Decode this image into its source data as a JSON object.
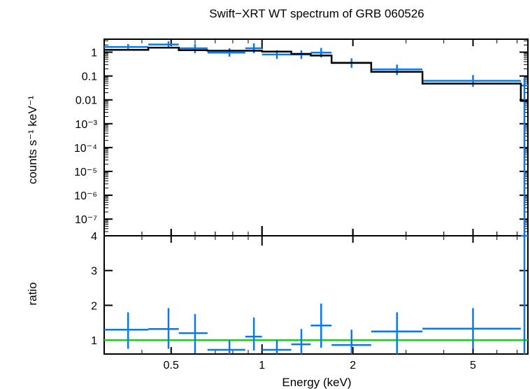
{
  "chart_data": [
    {
      "type": "scatter",
      "title": "Swift−XRT WT spectrum of GRB 060526",
      "xlabel": "",
      "ylabel": "counts s⁻¹ keV⁻¹",
      "x_scale": "log",
      "y_scale": "log",
      "xlim": [
        0.3,
        7.6
      ],
      "ylim": [
        2e-08,
        3.5
      ],
      "grid": false,
      "y_ticks": [
        {
          "value": 1,
          "label": "1"
        },
        {
          "value": 0.1,
          "label": "0.1"
        },
        {
          "value": 0.01,
          "label": "0.01"
        },
        {
          "value": 0.001,
          "label": "10⁻³"
        },
        {
          "value": 0.0001,
          "label": "10⁻⁴"
        },
        {
          "value": 1e-05,
          "label": "10⁻⁵"
        },
        {
          "value": 1e-06,
          "label": "10⁻⁶"
        },
        {
          "value": 1e-07,
          "label": "10⁻⁷"
        }
      ],
      "series": [
        {
          "type": "errorbar",
          "color": "#0a78e6",
          "points": [
            {
              "xlo": 0.3,
              "xhi": 0.42,
              "x": 0.36,
              "y": 1.65,
              "ylo": 1.25,
              "yhi": 2.2
            },
            {
              "xlo": 0.42,
              "xhi": 0.53,
              "x": 0.49,
              "y": 2.1,
              "ylo": 1.55,
              "yhi": 2.85
            },
            {
              "xlo": 0.53,
              "xhi": 0.66,
              "x": 0.6,
              "y": 1.45,
              "ylo": 0.9,
              "yhi": 2.25
            },
            {
              "xlo": 0.66,
              "xhi": 0.88,
              "x": 0.78,
              "y": 0.95,
              "ylo": 0.65,
              "yhi": 1.45
            },
            {
              "xlo": 0.88,
              "xhi": 1.0,
              "x": 0.94,
              "y": 1.45,
              "ylo": 0.9,
              "yhi": 2.35
            },
            {
              "xlo": 1.0,
              "xhi": 1.25,
              "x": 1.12,
              "y": 0.8,
              "ylo": 0.52,
              "yhi": 1.2
            },
            {
              "xlo": 1.25,
              "xhi": 1.45,
              "x": 1.35,
              "y": 0.8,
              "ylo": 0.52,
              "yhi": 1.2
            },
            {
              "xlo": 1.45,
              "xhi": 1.7,
              "x": 1.57,
              "y": 0.95,
              "ylo": 0.6,
              "yhi": 1.5
            },
            {
              "xlo": 1.7,
              "xhi": 2.3,
              "x": 1.98,
              "y": 0.35,
              "ylo": 0.22,
              "yhi": 0.55
            },
            {
              "xlo": 2.3,
              "xhi": 3.4,
              "x": 2.8,
              "y": 0.19,
              "ylo": 0.11,
              "yhi": 0.3
            },
            {
              "xlo": 3.4,
              "xhi": 7.2,
              "x": 5.0,
              "y": 0.063,
              "ylo": 0.035,
              "yhi": 0.11
            },
            {
              "xlo": 7.2,
              "xhi": 7.6,
              "x": 7.4,
              "y": 0.04,
              "ylo": 2e-08,
              "yhi": 0.08
            }
          ]
        },
        {
          "type": "step",
          "color": "#000000",
          "edges": [
            0.3,
            0.42,
            0.53,
            0.66,
            0.88,
            1.0,
            1.25,
            1.45,
            1.7,
            2.3,
            3.4,
            7.2,
            7.6
          ],
          "values": [
            1.25,
            1.55,
            1.2,
            1.15,
            1.15,
            1.05,
            0.85,
            0.72,
            0.36,
            0.15,
            0.048,
            0.009
          ]
        }
      ]
    },
    {
      "type": "scatter",
      "title": "",
      "xlabel": "Energy (keV)",
      "ylabel": "ratio",
      "x_scale": "log",
      "y_scale": "linear",
      "xlim": [
        0.3,
        7.6
      ],
      "ylim": [
        0.6,
        4.0
      ],
      "grid": false,
      "x_ticks": [
        {
          "value": 0.5,
          "label": "0.5"
        },
        {
          "value": 1,
          "label": "1"
        },
        {
          "value": 2,
          "label": "2"
        },
        {
          "value": 5,
          "label": "5"
        }
      ],
      "y_ticks": [
        {
          "value": 1,
          "label": "1"
        },
        {
          "value": 2,
          "label": "2"
        },
        {
          "value": 3,
          "label": "3"
        },
        {
          "value": 4,
          "label": "4"
        }
      ],
      "reference_line": {
        "y": 1,
        "color": "#00e000"
      },
      "series": [
        {
          "type": "errorbar",
          "color": "#0a78e6",
          "points": [
            {
              "xlo": 0.3,
              "xhi": 0.42,
              "x": 0.36,
              "y": 1.3,
              "ylo": 0.75,
              "yhi": 1.8
            },
            {
              "xlo": 0.42,
              "xhi": 0.53,
              "x": 0.49,
              "y": 1.32,
              "ylo": 0.75,
              "yhi": 1.92
            },
            {
              "xlo": 0.53,
              "xhi": 0.66,
              "x": 0.6,
              "y": 1.2,
              "ylo": 0.62,
              "yhi": 1.75
            },
            {
              "xlo": 0.66,
              "xhi": 0.88,
              "x": 0.78,
              "y": 0.72,
              "ylo": 0.6,
              "yhi": 1.0
            },
            {
              "xlo": 0.88,
              "xhi": 1.0,
              "x": 0.94,
              "y": 1.1,
              "ylo": 0.7,
              "yhi": 1.65
            },
            {
              "xlo": 1.0,
              "xhi": 1.25,
              "x": 1.12,
              "y": 0.72,
              "ylo": 0.6,
              "yhi": 1.0
            },
            {
              "xlo": 1.25,
              "xhi": 1.45,
              "x": 1.35,
              "y": 0.88,
              "ylo": 0.6,
              "yhi": 1.32
            },
            {
              "xlo": 1.45,
              "xhi": 1.7,
              "x": 1.57,
              "y": 1.42,
              "ylo": 0.78,
              "yhi": 2.05
            },
            {
              "xlo": 1.7,
              "xhi": 2.3,
              "x": 1.98,
              "y": 0.86,
              "ylo": 0.6,
              "yhi": 1.3
            },
            {
              "xlo": 2.3,
              "xhi": 3.4,
              "x": 2.8,
              "y": 1.25,
              "ylo": 0.6,
              "yhi": 1.8
            },
            {
              "xlo": 3.4,
              "xhi": 7.2,
              "x": 5.0,
              "y": 1.33,
              "ylo": 0.75,
              "yhi": 1.92
            },
            {
              "xlo": 7.2,
              "xhi": 7.6,
              "x": 7.4,
              "y": 4.0,
              "ylo": 0.6,
              "yhi": 4.0
            }
          ]
        }
      ]
    }
  ]
}
